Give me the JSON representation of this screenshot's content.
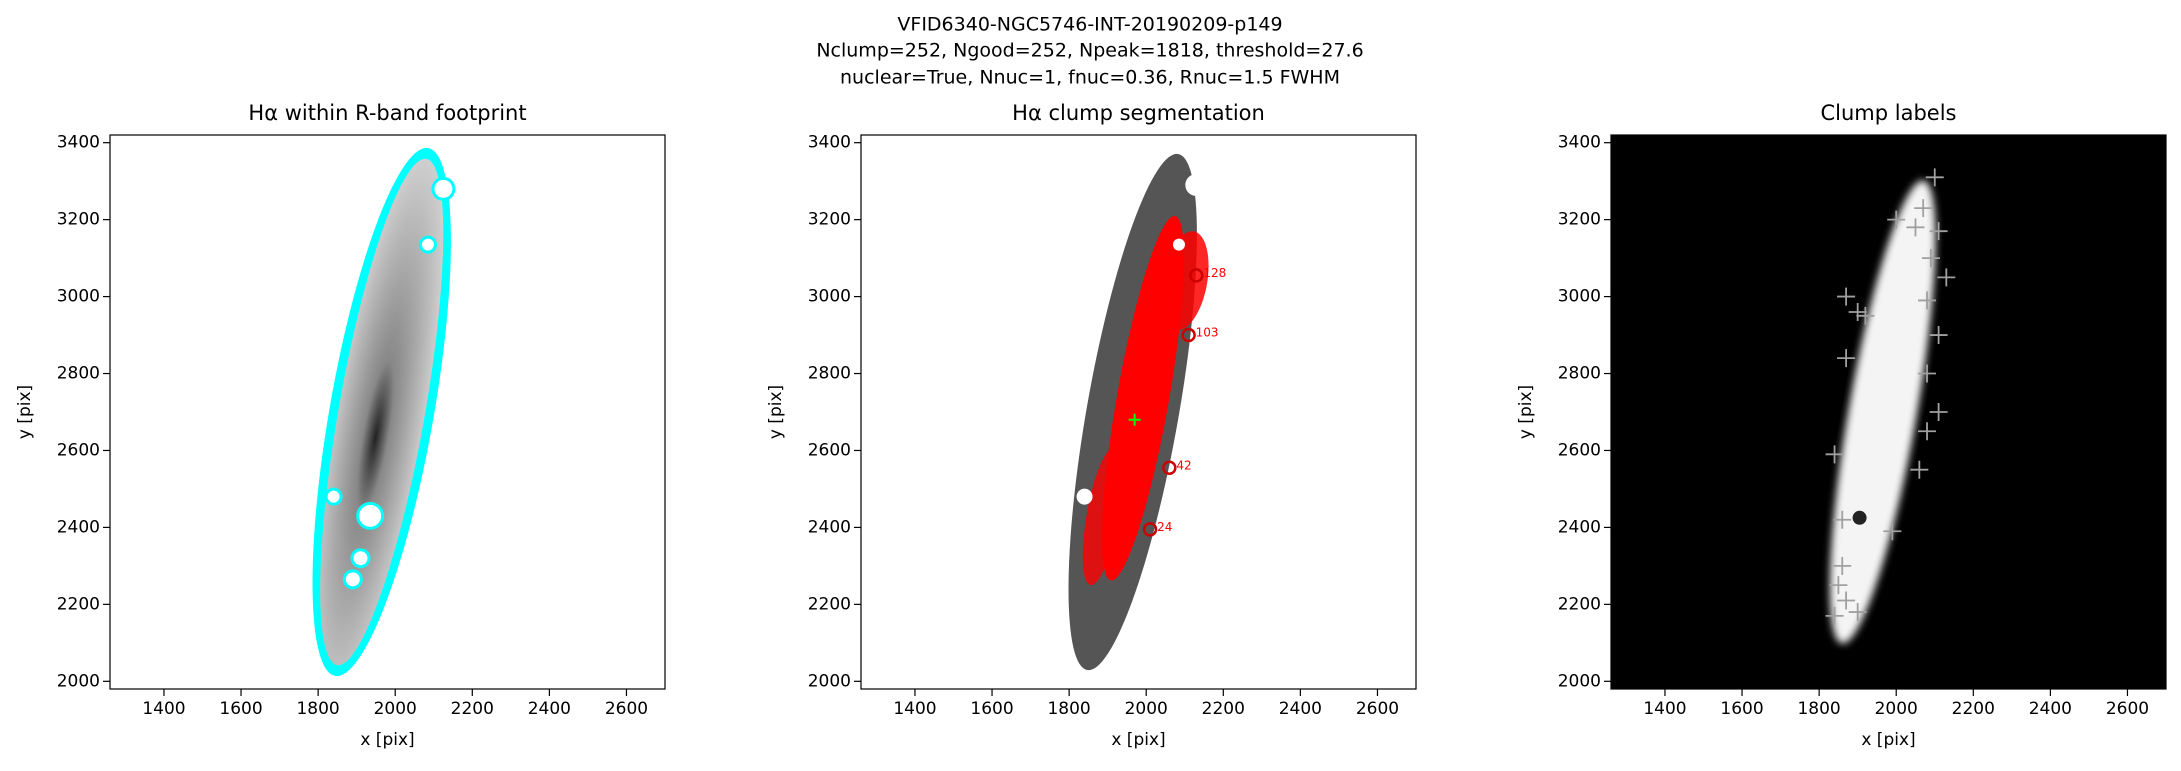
{
  "title": [
    "VFID6340-NGC5746-INT-20190209-p149",
    "Nclump=252, Ngood=252, Npeak=1818, threshold=27.6",
    "nuclear=True, Nnuc=1, fnuc=0.36, Rnuc=1.5 FWHM"
  ],
  "chart_data": [
    {
      "type": "image",
      "title": "Hα within R-band footprint",
      "xlabel": "x [pix]",
      "ylabel": "y [pix]",
      "xlim": [
        1260,
        2700
      ],
      "ylim": [
        1980,
        3420
      ],
      "xticks": [
        1400,
        1600,
        1800,
        2000,
        2200,
        2400,
        2600
      ],
      "yticks": [
        2000,
        2200,
        2400,
        2600,
        2800,
        3000,
        3200,
        3400
      ]
    },
    {
      "type": "image",
      "title": "Hα clump segmentation",
      "xlabel": "x [pix]",
      "ylabel": "y [pix]",
      "xlim": [
        1260,
        2700
      ],
      "ylim": [
        1980,
        3420
      ],
      "xticks": [
        1400,
        1600,
        1800,
        2000,
        2200,
        2400,
        2600
      ],
      "yticks": [
        2000,
        2200,
        2400,
        2600,
        2800,
        3000,
        3200,
        3400
      ],
      "annotations": [
        {
          "x": 2130,
          "y": 3055,
          "text": "128"
        },
        {
          "x": 2110,
          "y": 2900,
          "text": "103"
        },
        {
          "x": 2060,
          "y": 2555,
          "text": "42"
        },
        {
          "x": 2010,
          "y": 2395,
          "text": "24"
        }
      ]
    },
    {
      "type": "image",
      "title": "Clump labels",
      "xlabel": "x [pix]",
      "ylabel": "y [pix]",
      "xlim": [
        1260,
        2700
      ],
      "ylim": [
        1980,
        3420
      ],
      "xticks": [
        1400,
        1600,
        1800,
        2000,
        2200,
        2400,
        2600
      ],
      "yticks": [
        2000,
        2200,
        2400,
        2600,
        2800,
        3000,
        3200,
        3400
      ],
      "series": [
        {
          "color": "#a0a0a0",
          "x": [
            2100,
            2070,
            2110,
            2000,
            2050,
            2090,
            2130,
            2080,
            1870,
            1900,
            1920,
            2110,
            2080,
            1870,
            2110,
            2080,
            2060,
            1840,
            1990,
            1860,
            1850,
            1870,
            1900,
            1840,
            1860
          ],
          "y": [
            3310,
            3230,
            3170,
            3200,
            3180,
            3100,
            3050,
            2990,
            3000,
            2960,
            2950,
            2900,
            2800,
            2840,
            2700,
            2650,
            2550,
            2590,
            2390,
            2300,
            2250,
            2210,
            2180,
            2170,
            2420
          ]
        }
      ]
    }
  ]
}
